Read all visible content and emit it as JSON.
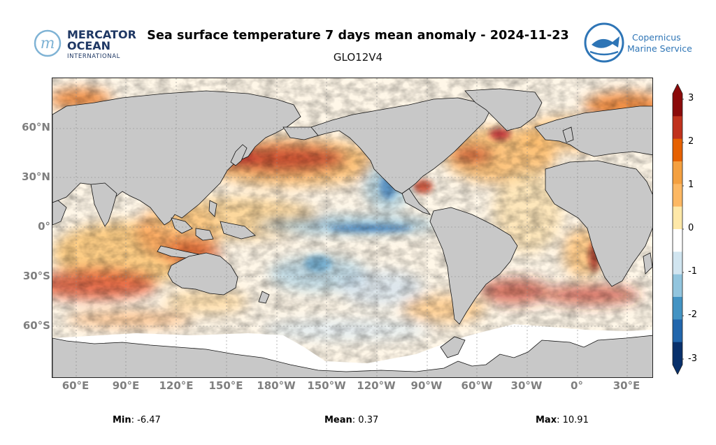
{
  "header": {
    "title": "Sea surface temperature 7 days mean anomaly - 2024-11-23",
    "subtitle": "GLO12V4"
  },
  "logos": {
    "mercator": {
      "line1": "MERCATOR",
      "line2": "OCEAN",
      "line3": "INTERNATIONAL",
      "letter": "m"
    },
    "copernicus": {
      "line1": "Copernicus",
      "line2": "Marine Service"
    }
  },
  "map": {
    "lat_labels": [
      "60°N",
      "30°N",
      "0°",
      "30°S",
      "60°S"
    ],
    "lon_labels": [
      "60°E",
      "90°E",
      "120°E",
      "150°E",
      "180°W",
      "150°W",
      "120°W",
      "90°W",
      "60°W",
      "30°W",
      "0°",
      "30°E"
    ]
  },
  "colorbar": {
    "ticks": [
      "3",
      "2",
      "1",
      "0",
      "-1",
      "-2",
      "-3"
    ],
    "min_value": -3,
    "max_value": 3,
    "colors": [
      "#08306b",
      "#2166ac",
      "#4393c3",
      "#92c5de",
      "#d1e5f0",
      "#ffffff",
      "#fee8a8",
      "#fdb863",
      "#f4a040",
      "#e66101",
      "#c0321d",
      "#8b0a0a"
    ]
  },
  "stats": {
    "min_label": "Min",
    "min_value": ": -6.47",
    "mean_label": "Mean",
    "mean_value": ": 0.37",
    "max_label": "Max",
    "max_value": ": 10.91"
  },
  "colors": {
    "land": "#c8c8c8",
    "axis_label": "#7f7f7f",
    "mercator_blue": "#1f3864",
    "copernicus_blue": "#2e75b6"
  }
}
